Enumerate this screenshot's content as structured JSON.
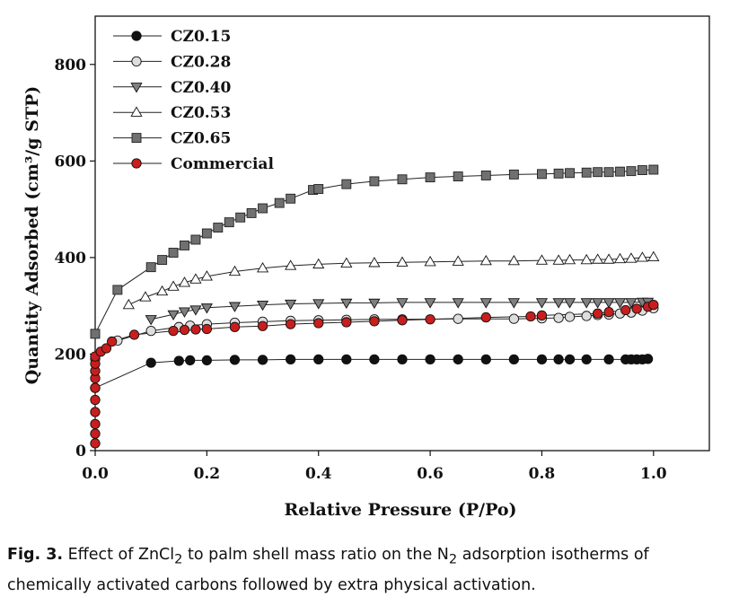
{
  "chart_data": {
    "type": "scatter",
    "xlabel": "Relative Pressure (P/Po)",
    "ylabel": "Quantity Adsorbed (cm³/g STP)",
    "xlim": [
      0,
      1.1
    ],
    "ylim": [
      0,
      900
    ],
    "x_ticks": [
      "0.0",
      "0.2",
      "0.4",
      "0.6",
      "0.8",
      "1.0"
    ],
    "x_tick_values": [
      0,
      0.2,
      0.4,
      0.6,
      0.8,
      1.0
    ],
    "y_ticks": [
      "0",
      "200",
      "400",
      "600",
      "800"
    ],
    "y_tick_values": [
      0,
      200,
      400,
      600,
      800
    ],
    "legend_position": "top-left",
    "grid": false,
    "series": [
      {
        "name": "CZ0.15",
        "marker": "circle",
        "fill": "#111111",
        "points": [
          [
            0.0,
            130
          ],
          [
            0.1,
            182
          ],
          [
            0.15,
            186
          ],
          [
            0.17,
            187
          ],
          [
            0.2,
            187
          ],
          [
            0.25,
            188
          ],
          [
            0.3,
            188
          ],
          [
            0.35,
            189
          ],
          [
            0.4,
            189
          ],
          [
            0.45,
            189
          ],
          [
            0.5,
            189
          ],
          [
            0.55,
            189
          ],
          [
            0.6,
            189
          ],
          [
            0.65,
            189
          ],
          [
            0.7,
            189
          ],
          [
            0.75,
            189
          ],
          [
            0.8,
            189
          ],
          [
            0.83,
            189
          ],
          [
            0.85,
            189
          ],
          [
            0.88,
            189
          ],
          [
            0.92,
            189
          ],
          [
            0.95,
            189
          ],
          [
            0.96,
            189
          ],
          [
            0.97,
            189
          ],
          [
            0.98,
            189
          ],
          [
            0.99,
            190
          ]
        ]
      },
      {
        "name": "CZ0.28",
        "marker": "circle",
        "fill": "#dddddd",
        "points": [
          [
            0.0,
            190
          ],
          [
            0.04,
            228
          ],
          [
            0.1,
            248
          ],
          [
            0.15,
            256
          ],
          [
            0.17,
            259
          ],
          [
            0.2,
            262
          ],
          [
            0.25,
            265
          ],
          [
            0.3,
            267
          ],
          [
            0.35,
            269
          ],
          [
            0.4,
            270
          ],
          [
            0.45,
            271
          ],
          [
            0.5,
            272
          ],
          [
            0.55,
            272
          ],
          [
            0.65,
            273
          ],
          [
            0.75,
            273
          ],
          [
            0.8,
            274
          ],
          [
            0.83,
            275
          ],
          [
            0.85,
            277
          ],
          [
            0.88,
            279
          ],
          [
            0.9,
            281
          ],
          [
            0.92,
            282
          ],
          [
            0.94,
            284
          ],
          [
            0.96,
            286
          ],
          [
            0.98,
            290
          ],
          [
            1.0,
            295
          ]
        ]
      },
      {
        "name": "CZ0.40",
        "marker": "triangle-down",
        "fill": "#808080",
        "points": [
          [
            0.1,
            272
          ],
          [
            0.14,
            282
          ],
          [
            0.16,
            288
          ],
          [
            0.18,
            292
          ],
          [
            0.2,
            296
          ],
          [
            0.25,
            299
          ],
          [
            0.3,
            302
          ],
          [
            0.35,
            304
          ],
          [
            0.4,
            305
          ],
          [
            0.45,
            306
          ],
          [
            0.5,
            306
          ],
          [
            0.55,
            307
          ],
          [
            0.6,
            307
          ],
          [
            0.65,
            307
          ],
          [
            0.7,
            307
          ],
          [
            0.75,
            307
          ],
          [
            0.8,
            307
          ],
          [
            0.83,
            307
          ],
          [
            0.85,
            307
          ],
          [
            0.88,
            307
          ],
          [
            0.9,
            307
          ],
          [
            0.92,
            307
          ],
          [
            0.94,
            307
          ],
          [
            0.96,
            307
          ],
          [
            0.98,
            308
          ],
          [
            0.99,
            308
          ]
        ]
      },
      {
        "name": "CZ0.53",
        "marker": "triangle-up",
        "fill": "#ffffff",
        "points": [
          [
            0.06,
            302
          ],
          [
            0.09,
            318
          ],
          [
            0.12,
            330
          ],
          [
            0.14,
            340
          ],
          [
            0.16,
            348
          ],
          [
            0.18,
            355
          ],
          [
            0.2,
            361
          ],
          [
            0.25,
            371
          ],
          [
            0.3,
            378
          ],
          [
            0.35,
            383
          ],
          [
            0.4,
            386
          ],
          [
            0.45,
            388
          ],
          [
            0.5,
            389
          ],
          [
            0.55,
            390
          ],
          [
            0.6,
            391
          ],
          [
            0.65,
            392
          ],
          [
            0.7,
            393
          ],
          [
            0.75,
            393
          ],
          [
            0.8,
            394
          ],
          [
            0.83,
            394
          ],
          [
            0.85,
            395
          ],
          [
            0.88,
            395
          ],
          [
            0.9,
            396
          ],
          [
            0.92,
            396
          ],
          [
            0.94,
            397
          ],
          [
            0.96,
            398
          ],
          [
            0.98,
            400
          ],
          [
            1.0,
            401
          ]
        ]
      },
      {
        "name": "CZ0.65",
        "marker": "square",
        "fill": "#707070",
        "points": [
          [
            0.0,
            242
          ],
          [
            0.04,
            333
          ],
          [
            0.1,
            380
          ],
          [
            0.12,
            395
          ],
          [
            0.14,
            410
          ],
          [
            0.16,
            425
          ],
          [
            0.18,
            437
          ],
          [
            0.2,
            450
          ],
          [
            0.22,
            462
          ],
          [
            0.24,
            473
          ],
          [
            0.26,
            483
          ],
          [
            0.28,
            492
          ],
          [
            0.3,
            502
          ],
          [
            0.33,
            513
          ],
          [
            0.35,
            522
          ],
          [
            0.39,
            540
          ],
          [
            0.4,
            542
          ],
          [
            0.45,
            552
          ],
          [
            0.5,
            558
          ],
          [
            0.55,
            562
          ],
          [
            0.6,
            566
          ],
          [
            0.65,
            568
          ],
          [
            0.7,
            570
          ],
          [
            0.75,
            572
          ],
          [
            0.8,
            573
          ],
          [
            0.83,
            574
          ],
          [
            0.85,
            575
          ],
          [
            0.88,
            576
          ],
          [
            0.9,
            577
          ],
          [
            0.92,
            577
          ],
          [
            0.94,
            578
          ],
          [
            0.96,
            579
          ],
          [
            0.98,
            581
          ],
          [
            1.0,
            582
          ]
        ]
      },
      {
        "name": "Commercial",
        "marker": "circle",
        "fill": "#c81e1e",
        "points": [
          [
            0.0,
            15
          ],
          [
            0.0,
            35
          ],
          [
            0.0,
            55
          ],
          [
            0.0,
            80
          ],
          [
            0.0,
            105
          ],
          [
            0.0,
            130
          ],
          [
            0.0,
            150
          ],
          [
            0.0,
            165
          ],
          [
            0.0,
            180
          ],
          [
            0.0,
            195
          ],
          [
            0.01,
            205
          ],
          [
            0.02,
            212
          ],
          [
            0.03,
            226
          ],
          [
            0.07,
            240
          ],
          [
            0.14,
            248
          ],
          [
            0.16,
            250
          ],
          [
            0.18,
            251
          ],
          [
            0.2,
            252
          ],
          [
            0.25,
            256
          ],
          [
            0.3,
            258
          ],
          [
            0.35,
            262
          ],
          [
            0.4,
            264
          ],
          [
            0.45,
            266
          ],
          [
            0.5,
            268
          ],
          [
            0.55,
            270
          ],
          [
            0.6,
            272
          ],
          [
            0.7,
            276
          ],
          [
            0.78,
            278
          ],
          [
            0.8,
            280
          ],
          [
            0.9,
            284
          ],
          [
            0.92,
            287
          ],
          [
            0.95,
            291
          ],
          [
            0.97,
            294
          ],
          [
            0.99,
            298
          ],
          [
            1.0,
            302
          ]
        ]
      }
    ]
  },
  "caption": {
    "label": "Fig. 3.",
    "text_before_sub1": " Effect of ZnCl",
    "sub1": "2",
    "text_middle": " to palm shell mass ratio on the N",
    "sub2": "2",
    "text_after": " adsorption isotherms of chemically activated carbons followed by extra physical activation."
  }
}
